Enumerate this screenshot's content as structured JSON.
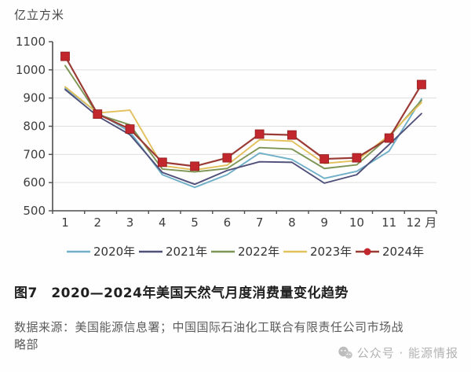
{
  "page": {
    "title": "图7　2020—2024年美国天然气月度消费量变化趋势",
    "source_note": "数据来源：美国能源信息署；中国国际石油化工联合有限责任公司市场战略部",
    "watermark": "公众号 · 能源情报"
  },
  "chart_data": {
    "type": "line",
    "title": "",
    "unit_label": "亿立方米",
    "xlabel": "月",
    "ylabel": "亿立方米",
    "x_labels": [
      "1",
      "2",
      "3",
      "4",
      "5",
      "6",
      "7",
      "8",
      "9",
      "10",
      "11",
      "12 月"
    ],
    "ylim": [
      500,
      1100
    ],
    "y_ticks": [
      500,
      600,
      700,
      800,
      900,
      1000,
      1100
    ],
    "grid": "horizontal",
    "legend_position": "bottom",
    "colors": {
      "grid": "#dedede",
      "axis": "#4d4d4d",
      "text": "#3d3d3d",
      "legend_text": "#333333"
    },
    "series": [
      {
        "name": "2020年",
        "color": "#6fafc7",
        "values": [
          935,
          848,
          780,
          628,
          583,
          628,
          705,
          682,
          615,
          640,
          712,
          897
        ]
      },
      {
        "name": "2021年",
        "color": "#50507a",
        "values": [
          930,
          836,
          770,
          636,
          594,
          643,
          674,
          672,
          598,
          628,
          735,
          845
        ]
      },
      {
        "name": "2022年",
        "color": "#7d9655",
        "values": [
          1015,
          842,
          805,
          648,
          638,
          650,
          724,
          719,
          650,
          663,
          763,
          892
        ]
      },
      {
        "name": "2023年",
        "color": "#e2c05c",
        "values": [
          940,
          847,
          857,
          660,
          645,
          662,
          752,
          747,
          668,
          678,
          768,
          884
        ]
      },
      {
        "name": "2024年",
        "color": "#9b3b35",
        "marker": "square",
        "marker_color": "#c1272d",
        "values": [
          1048,
          843,
          790,
          672,
          658,
          688,
          772,
          769,
          684,
          688,
          758,
          948
        ]
      }
    ]
  }
}
